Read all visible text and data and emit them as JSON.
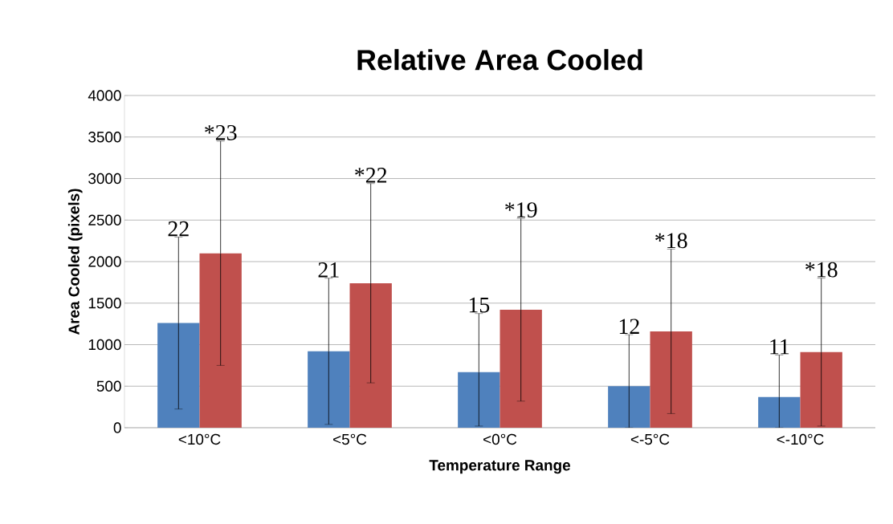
{
  "chart_data": {
    "type": "bar",
    "title": "Relative Area Cooled",
    "xlabel": "Temperature Range",
    "ylabel": "Area Cooled (pixels)",
    "categories": [
      "<10°C",
      "<5°C",
      "<0°C",
      "<-5°C",
      "<-10°C"
    ],
    "series": [
      {
        "color": "#4f81bd",
        "values": [
          1260,
          920,
          670,
          500,
          370
        ],
        "errors": [
          [
            225,
            2295
          ],
          [
            40,
            1800
          ],
          [
            20,
            1375
          ],
          [
            0,
            1120
          ],
          [
            0,
            875
          ]
        ]
      },
      {
        "color": "#c0504d",
        "values": [
          2100,
          1740,
          1420,
          1160,
          910
        ],
        "errors": [
          1350,
          1200,
          1100,
          990,
          890
        ]
      }
    ],
    "ylim": [
      0,
      4000
    ],
    "yticks": [
      0,
      500,
      1000,
      1500,
      2000,
      2500,
      3000,
      3500,
      4000
    ],
    "grid": "y",
    "annotations": [
      "22",
      "*23",
      "21",
      "*22",
      "15",
      "*19",
      "12",
      "*18",
      "11",
      "*18"
    ]
  }
}
